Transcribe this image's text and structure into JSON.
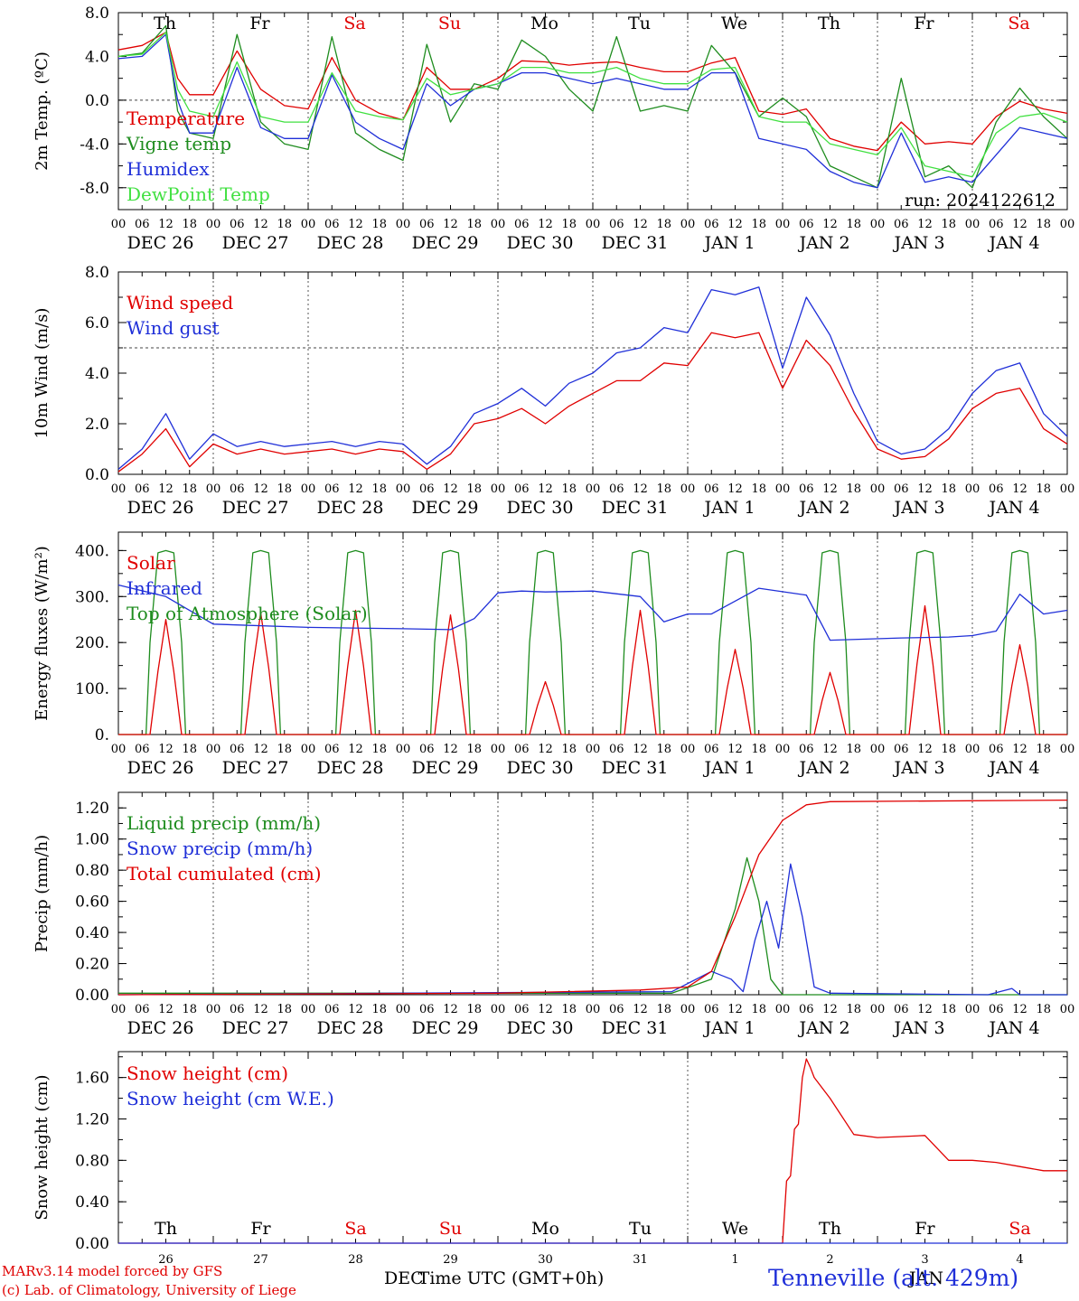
{
  "run_label": "run: 2024122612",
  "footer": {
    "model": "MARv3.14 model forced by GFS",
    "lab": "(c) Lab. of Climatology, University of Liege",
    "time_axis": "Time UTC (GMT+0h)",
    "dec": "DEC",
    "jan": "JAN",
    "station": "Tenneville (alt. 429m)"
  },
  "hour_ticks": [
    "00",
    "06",
    "12",
    "18"
  ],
  "final_tick": "00",
  "day_labels": [
    "DEC 26",
    "DEC 27",
    "DEC 28",
    "DEC 29",
    "DEC 30",
    "DEC 31",
    "JAN  1",
    "JAN  2",
    "JAN  3",
    "JAN  4"
  ],
  "weekdays": [
    "Th",
    "Fr",
    "Sa",
    "Su",
    "Mo",
    "Tu",
    "We",
    "Th",
    "Fr",
    "Sa"
  ],
  "weekday_colors": [
    "#000000",
    "#000000",
    "#e00000",
    "#e00000",
    "#000000",
    "#000000",
    "#000000",
    "#000000",
    "#000000",
    "#e00000"
  ],
  "day_numbers": [
    "26",
    "27",
    "28",
    "29",
    "30",
    "31",
    "1",
    "2",
    "3",
    "4"
  ],
  "colors": {
    "red": "#e00000",
    "green": "#1e8c1e",
    "blue": "#1f2fd8",
    "lightgreen": "#40e040"
  },
  "chart_data": [
    {
      "type": "line",
      "ylabel": "2m Temp. (ºC)",
      "ylim": [
        -10,
        8
      ],
      "yticks": [
        "8.0",
        "4.0",
        "0.0",
        "-4.0",
        "-8.0"
      ],
      "ytick_values": [
        8,
        4,
        0,
        -4,
        -8
      ],
      "reference_line": 0,
      "x_hours": [
        0,
        6,
        12,
        15,
        18,
        24,
        30,
        36,
        42,
        48,
        54,
        60,
        66,
        72,
        78,
        84,
        90,
        96,
        102,
        108,
        114,
        120,
        126,
        132,
        138,
        144,
        150,
        156,
        162,
        168,
        174,
        180,
        186,
        192,
        198,
        204,
        210,
        216,
        222,
        228,
        234,
        240
      ],
      "series": [
        {
          "name": "Temperature",
          "color": "#e00000",
          "values": [
            4.6,
            5,
            6.2,
            2,
            0.5,
            0.5,
            4.5,
            1,
            -0.5,
            -0.8,
            3.9,
            0,
            -1.2,
            -1.8,
            3,
            1,
            1,
            2,
            3.6,
            3.5,
            3.2,
            3.4,
            3.5,
            3,
            2.6,
            2.6,
            3.4,
            3.9,
            -1,
            -1.3,
            -0.8,
            -3.5,
            -4.2,
            -4.6,
            -2,
            -4,
            -3.8,
            -4,
            -1.5,
            -0.1,
            -0.8,
            -1.2
          ]
        },
        {
          "name": "Vigne temp",
          "color": "#1e8c1e",
          "values": [
            4,
            4.3,
            6.8,
            -1,
            -3,
            -3.5,
            6,
            -2,
            -4,
            -4.5,
            5.8,
            -3,
            -4.5,
            -5.5,
            5.1,
            -2,
            1.5,
            1,
            5.5,
            4,
            1,
            -1,
            5.8,
            -1,
            -0.5,
            -1,
            5,
            2.5,
            -1.5,
            0.2,
            -1.5,
            -6,
            -7,
            -8,
            2,
            -7,
            -6,
            -8,
            -2,
            1.1,
            -1.5,
            -3.5
          ]
        },
        {
          "name": "Humidex",
          "color": "#1f2fd8",
          "values": [
            3.8,
            4,
            6,
            0,
            -3,
            -3,
            3,
            -2.5,
            -3.5,
            -3.5,
            2.3,
            -2,
            -3.5,
            -4.5,
            1.5,
            -0.5,
            1,
            1.5,
            2.5,
            2.5,
            2,
            1.5,
            2,
            1.5,
            1,
            1,
            2.5,
            2.5,
            -3.5,
            -4,
            -4.5,
            -6.5,
            -7.5,
            -8,
            -3,
            -7.5,
            -7,
            -7.5,
            -5,
            -2.5,
            -3,
            -3.5
          ]
        },
        {
          "name": "DewPoint Temp",
          "color": "#40e040",
          "values": [
            4,
            4.2,
            6.2,
            1,
            -1,
            -1.5,
            3.5,
            -1.5,
            -2,
            -2,
            2.5,
            -1,
            -1.5,
            -1.8,
            2,
            0.5,
            1,
            1.5,
            3,
            3,
            2.5,
            2.5,
            3,
            2,
            1.5,
            1.5,
            2.8,
            3,
            -1.5,
            -2,
            -2,
            -4,
            -4.5,
            -5,
            -2.5,
            -6,
            -6.5,
            -7,
            -3,
            -1.5,
            -1.2,
            -2
          ]
        }
      ]
    },
    {
      "type": "line",
      "ylabel": "10m Wind (m/s)",
      "ylim": [
        0,
        8
      ],
      "yticks": [
        "8.0",
        "6.0",
        "4.0",
        "2.0",
        "0.0"
      ],
      "ytick_values": [
        8,
        6,
        4,
        2,
        0
      ],
      "reference_line": 5,
      "x_hours": [
        0,
        6,
        12,
        18,
        24,
        30,
        36,
        42,
        48,
        54,
        60,
        66,
        72,
        78,
        84,
        90,
        96,
        102,
        108,
        114,
        120,
        126,
        132,
        138,
        144,
        150,
        156,
        162,
        168,
        174,
        180,
        186,
        192,
        198,
        204,
        210,
        216,
        222,
        228,
        234,
        240
      ],
      "series": [
        {
          "name": "Wind speed",
          "color": "#e00000",
          "values": [
            0.1,
            0.8,
            1.8,
            0.3,
            1.2,
            0.8,
            1,
            0.8,
            0.9,
            1,
            0.8,
            1,
            0.9,
            0.2,
            0.8,
            2,
            2.2,
            2.6,
            2,
            2.7,
            3.2,
            3.7,
            3.7,
            4.4,
            4.3,
            5.6,
            5.4,
            5.6,
            3.4,
            5.3,
            4.3,
            2.5,
            1,
            0.6,
            0.7,
            1.4,
            2.6,
            3.2,
            3.4,
            1.8,
            1.2
          ]
        },
        {
          "name": "Wind gust",
          "color": "#1f2fd8",
          "values": [
            0.2,
            1,
            2.4,
            0.6,
            1.6,
            1.1,
            1.3,
            1.1,
            1.2,
            1.3,
            1.1,
            1.3,
            1.2,
            0.4,
            1.1,
            2.4,
            2.8,
            3.4,
            2.7,
            3.6,
            4,
            4.8,
            5,
            5.8,
            5.6,
            7.3,
            7.1,
            7.4,
            4.2,
            7,
            5.5,
            3.2,
            1.3,
            0.8,
            1,
            1.8,
            3.2,
            4.1,
            4.4,
            2.4,
            1.5
          ]
        }
      ]
    },
    {
      "type": "line",
      "ylabel": "Energy fluxes (W/m²)",
      "ylim": [
        0,
        440
      ],
      "yticks": [
        "400.",
        "300.",
        "200.",
        "100.",
        "0."
      ],
      "ytick_values": [
        400,
        300,
        200,
        100,
        0
      ],
      "series": [
        {
          "name": "Solar",
          "color": "#e00000",
          "peaks": [
            250,
            265,
            270,
            260,
            115,
            270,
            185,
            135,
            280,
            195
          ]
        },
        {
          "name": "Infrared",
          "color": "#1f2fd8",
          "x_hours": [
            0,
            12,
            24,
            48,
            72,
            84,
            90,
            96,
            102,
            108,
            120,
            132,
            138,
            144,
            150,
            162,
            174,
            180,
            198,
            210,
            216,
            222,
            228,
            234,
            240
          ],
          "values": [
            325,
            300,
            240,
            233,
            230,
            228,
            252,
            308,
            312,
            310,
            312,
            300,
            245,
            262,
            262,
            318,
            303,
            205,
            210,
            212,
            215,
            225,
            305,
            262,
            270
          ]
        },
        {
          "name": "Top of Atmosphere (Solar)",
          "color": "#1e8c1e",
          "peak": 400
        }
      ]
    },
    {
      "type": "line",
      "ylabel": "Precip (mm/h)",
      "ylim": [
        0,
        1.3
      ],
      "yticks": [
        "1.20",
        "1.00",
        "0.80",
        "0.60",
        "0.40",
        "0.20",
        "0.00"
      ],
      "ytick_values": [
        1.2,
        1.0,
        0.8,
        0.6,
        0.4,
        0.2,
        0
      ],
      "series": [
        {
          "name": "Liquid precip (mm/h)",
          "color": "#1e8c1e",
          "x_hours": [
            0,
            140,
            150,
            156,
            159,
            162,
            165,
            168,
            240
          ],
          "values": [
            0.01,
            0.01,
            0.1,
            0.55,
            0.88,
            0.6,
            0.1,
            0,
            0
          ]
        },
        {
          "name": "Snow precip (mm/h)",
          "color": "#1f2fd8",
          "x_hours": [
            0,
            140,
            150,
            155,
            158,
            161,
            164,
            167,
            170,
            173,
            176,
            180,
            220,
            226,
            228,
            240
          ],
          "values": [
            0,
            0.02,
            0.15,
            0.1,
            0.02,
            0.35,
            0.6,
            0.3,
            0.84,
            0.5,
            0.05,
            0.01,
            0,
            0.04,
            0,
            0
          ]
        },
        {
          "name": "Total cumulated (cm)",
          "color": "#e00000",
          "x_hours": [
            0,
            96,
            132,
            144,
            150,
            156,
            162,
            168,
            174,
            180,
            240
          ],
          "values": [
            0,
            0.01,
            0.03,
            0.05,
            0.15,
            0.5,
            0.9,
            1.12,
            1.22,
            1.24,
            1.25
          ]
        }
      ]
    },
    {
      "type": "line",
      "ylabel": "Snow height (cm)",
      "ylim": [
        0,
        1.85
      ],
      "yticks": [
        "1.60",
        "1.20",
        "0.80",
        "0.40",
        "0.00"
      ],
      "ytick_values": [
        1.6,
        1.2,
        0.8,
        0.4,
        0
      ],
      "series": [
        {
          "name": "Snow height (cm)",
          "color": "#e00000",
          "x_hours": [
            0,
            168,
            169,
            170,
            171,
            172,
            173,
            174,
            175,
            176,
            180,
            186,
            192,
            198,
            204,
            210,
            216,
            222,
            228,
            234,
            240
          ],
          "values": [
            0,
            0,
            0.6,
            0.65,
            1.1,
            1.15,
            1.6,
            1.78,
            1.7,
            1.6,
            1.4,
            1.05,
            1.02,
            1.03,
            1.04,
            0.8,
            0.8,
            0.78,
            0.74,
            0.7,
            0.7
          ]
        },
        {
          "name": "Snow height (cm W.E.)",
          "color": "#1f2fd8",
          "x_hours": [
            0,
            240
          ],
          "values": [
            0,
            0
          ]
        }
      ]
    }
  ]
}
